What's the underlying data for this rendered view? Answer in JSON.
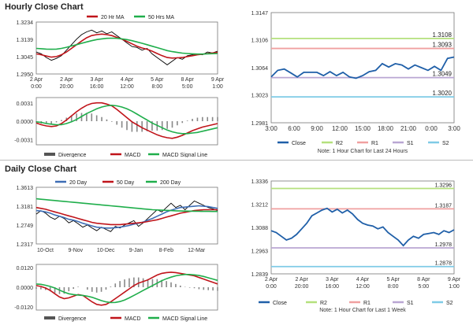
{
  "sections": {
    "hourly_title": "Hourly Close Chart",
    "daily_title": "Daily Close Chart"
  },
  "colors": {
    "close": "#000000",
    "ma_red": "#c0141a",
    "ma_green": "#1fae4b",
    "ma_blue": "#3d6db5",
    "macd_bars": "#888888",
    "r2": "#b4e07d",
    "r1": "#f0a0a0",
    "s1": "#b9a6d3",
    "s2": "#7fcbe6",
    "close_right": "#1f5fa8",
    "grid": "#cccccc"
  },
  "chart_data": [
    {
      "id": "hourly_price",
      "type": "line",
      "legend": [
        "20 Hr MA",
        "50 Hrs MA"
      ],
      "x_tick_labels": [
        [
          "2 Apr",
          "0:00"
        ],
        [
          "2 Apr",
          "20:00"
        ],
        [
          "3 Apr",
          "16:00"
        ],
        [
          "4 Apr",
          "12:00"
        ],
        [
          "5 Apr",
          "8:00"
        ],
        [
          "8 Apr",
          "5:00"
        ],
        [
          "9 Apr",
          "1:00"
        ]
      ],
      "y_ticks": [
        1.295,
        1.3045,
        1.3139,
        1.3234
      ],
      "y_tick_labels": [
        "1.2950",
        "1.3045",
        "1.3139",
        "1.3234"
      ],
      "ylim": [
        1.295,
        1.3234
      ],
      "series": [
        {
          "values": [
            1.307,
            1.306,
            1.304,
            1.3025,
            1.3035,
            1.305,
            1.308,
            1.311,
            1.314,
            1.3165,
            1.318,
            1.319,
            1.3175,
            1.3185,
            1.317,
            1.318,
            1.316,
            1.314,
            1.312,
            1.31,
            1.3095,
            1.308,
            1.309,
            1.306,
            1.304,
            1.302,
            1.3,
            1.302,
            1.304,
            1.303,
            1.305,
            1.3055,
            1.306,
            1.3055,
            1.307,
            1.3065,
            1.3075
          ]
        },
        {
          "name": "20 Hr MA",
          "values": [
            1.306,
            1.3055,
            1.3048,
            1.3042,
            1.3045,
            1.3055,
            1.307,
            1.309,
            1.311,
            1.313,
            1.3148,
            1.316,
            1.3165,
            1.3168,
            1.3165,
            1.316,
            1.315,
            1.314,
            1.3128,
            1.3115,
            1.3102,
            1.3092,
            1.3085,
            1.3075,
            1.3062,
            1.305,
            1.304,
            1.3037,
            1.3038,
            1.304,
            1.3045,
            1.305,
            1.3055,
            1.3058,
            1.3062,
            1.3065,
            1.3068
          ]
        },
        {
          "name": "50 Hrs MA",
          "values": [
            1.309,
            1.3088,
            1.3086,
            1.3085,
            1.3086,
            1.309,
            1.3096,
            1.3103,
            1.311,
            1.3118,
            1.3125,
            1.3132,
            1.3138,
            1.3142,
            1.3145,
            1.3146,
            1.3145,
            1.3142,
            1.3138,
            1.3132,
            1.3125,
            1.3118,
            1.311,
            1.3102,
            1.3094,
            1.3086,
            1.3078,
            1.3072,
            1.3068,
            1.3064,
            1.3062,
            1.306,
            1.3059,
            1.3059,
            1.306,
            1.3061,
            1.3062
          ]
        }
      ]
    },
    {
      "id": "hourly_macd",
      "type": "line",
      "legend": [
        "Divergence",
        "MACD",
        "MACD Signal Line"
      ],
      "y_ticks": [
        -0.0031,
        0.0,
        0.0031
      ],
      "y_tick_labels": [
        "-0.0031",
        "0.0000",
        "0.0031"
      ],
      "ylim": [
        -0.004,
        0.004
      ],
      "series": [
        {
          "name": "MACD",
          "values": [
            -0.0003,
            -0.0006,
            -0.0008,
            -0.0009,
            -0.0008,
            -0.0004,
            0.0002,
            0.0009,
            0.0016,
            0.0022,
            0.0027,
            0.003,
            0.0031,
            0.0031,
            0.0029,
            0.0026,
            0.002,
            0.0013,
            0.0006,
            -0.0001,
            -0.0006,
            -0.0011,
            -0.0015,
            -0.0019,
            -0.0023,
            -0.0026,
            -0.0028,
            -0.0029,
            -0.0027,
            -0.0024,
            -0.002,
            -0.0016,
            -0.0013,
            -0.001,
            -0.0008,
            -0.0006,
            -0.0004
          ]
        },
        {
          "name": "MACD Signal Line",
          "values": [
            -0.0001,
            -0.0002,
            -0.0004,
            -0.0005,
            -0.0006,
            -0.0006,
            -0.0004,
            -0.0001,
            0.0003,
            0.0008,
            0.0013,
            0.0017,
            0.0021,
            0.0024,
            0.0026,
            0.0027,
            0.0026,
            0.0024,
            0.0021,
            0.0017,
            0.0012,
            0.0007,
            0.0002,
            -0.0003,
            -0.0007,
            -0.0011,
            -0.0015,
            -0.0018,
            -0.002,
            -0.0021,
            -0.0021,
            -0.002,
            -0.0019,
            -0.0017,
            -0.0015,
            -0.0013,
            -0.0011
          ]
        }
      ]
    },
    {
      "id": "hourly_pivot",
      "type": "line",
      "legend": [
        "Close",
        "R2",
        "R1",
        "S1",
        "S2"
      ],
      "note": "Note: 1 Hour Chart for Last 24 Hours",
      "x_tick_labels": [
        "3:00",
        "6:00",
        "9:00",
        "12:00",
        "15:00",
        "18:00",
        "21:00",
        "0:00",
        "3:00"
      ],
      "y_ticks": [
        1.2981,
        1.3023,
        1.3064,
        1.3106,
        1.3147
      ],
      "y_tick_labels": [
        "1.2981",
        "1.3023",
        "1.3064",
        "1.3106",
        "1.3147"
      ],
      "ylim": [
        1.2981,
        1.3147
      ],
      "levels": [
        {
          "name": "R2",
          "value": 1.3108,
          "label": "1.3108"
        },
        {
          "name": "R1",
          "value": 1.3093,
          "label": "1.3093"
        },
        {
          "name": "S1",
          "value": 1.3049,
          "label": "1.3049"
        },
        {
          "name": "S2",
          "value": 1.302,
          "label": "1.3020"
        }
      ],
      "series": [
        {
          "name": "Close",
          "values": [
            1.305,
            1.306,
            1.3062,
            1.3056,
            1.305,
            1.3057,
            1.3057,
            1.3057,
            1.3052,
            1.3058,
            1.3052,
            1.3057,
            1.305,
            1.3048,
            1.3052,
            1.3058,
            1.306,
            1.307,
            1.3065,
            1.307,
            1.3068,
            1.3062,
            1.3068,
            1.3064,
            1.306,
            1.3066,
            1.306,
            1.3078,
            1.308
          ]
        }
      ]
    },
    {
      "id": "daily_price",
      "type": "line",
      "legend": [
        "20 Day",
        "50 Day",
        "200 Day"
      ],
      "x_tick_labels": [
        "10-Oct",
        "9-Nov",
        "10-Dec",
        "9-Jan",
        "8-Feb",
        "12-Mar"
      ],
      "y_ticks": [
        1.2317,
        1.2749,
        1.3181,
        1.3613
      ],
      "y_tick_labels": [
        "1.2317",
        "1.2749",
        "1.3181",
        "1.3613"
      ],
      "ylim": [
        1.2317,
        1.3613
      ],
      "series": [
        {
          "values": [
            1.3,
            1.308,
            1.302,
            1.293,
            1.288,
            1.295,
            1.29,
            1.28,
            1.285,
            1.278,
            1.27,
            1.275,
            1.268,
            1.262,
            1.27,
            1.265,
            1.26,
            1.272,
            1.268,
            1.275,
            1.28,
            1.285,
            1.272,
            1.28,
            1.29,
            1.3,
            1.31,
            1.305,
            1.315,
            1.325,
            1.315,
            1.32,
            1.31,
            1.32,
            1.33,
            1.325,
            1.32,
            1.315,
            1.312,
            1.308
          ]
        },
        {
          "name": "20 Day",
          "values": [
            1.308,
            1.307,
            1.305,
            1.302,
            1.298,
            1.295,
            1.292,
            1.288,
            1.286,
            1.283,
            1.279,
            1.276,
            1.273,
            1.27,
            1.269,
            1.268,
            1.268,
            1.269,
            1.27,
            1.272,
            1.274,
            1.277,
            1.279,
            1.282,
            1.286,
            1.29,
            1.295,
            1.3,
            1.305,
            1.309,
            1.312,
            1.315,
            1.316,
            1.317,
            1.318,
            1.319,
            1.318,
            1.317,
            1.315,
            1.313
          ]
        },
        {
          "name": "50 Day",
          "values": [
            1.315,
            1.313,
            1.311,
            1.308,
            1.305,
            1.302,
            1.299,
            1.296,
            1.293,
            1.29,
            1.287,
            1.284,
            1.281,
            1.279,
            1.278,
            1.277,
            1.276,
            1.276,
            1.276,
            1.277,
            1.278,
            1.279,
            1.28,
            1.281,
            1.283,
            1.285,
            1.287,
            1.29,
            1.293,
            1.296,
            1.299,
            1.302,
            1.304,
            1.306,
            1.308,
            1.309,
            1.31,
            1.31,
            1.31,
            1.31
          ]
        },
        {
          "name": "200 Day",
          "values": [
            1.335,
            1.334,
            1.333,
            1.332,
            1.331,
            1.33,
            1.329,
            1.328,
            1.327,
            1.326,
            1.325,
            1.324,
            1.323,
            1.322,
            1.321,
            1.32,
            1.319,
            1.318,
            1.317,
            1.316,
            1.315,
            1.314,
            1.313,
            1.312,
            1.311,
            1.31,
            1.3095,
            1.309,
            1.3085,
            1.308,
            1.3075,
            1.3072,
            1.307,
            1.3068,
            1.3066,
            1.3064,
            1.3063,
            1.3062,
            1.3061,
            1.306
          ]
        }
      ]
    },
    {
      "id": "daily_macd",
      "type": "line",
      "legend": [
        "Divergence",
        "MACD",
        "MACD Signal Line"
      ],
      "y_ticks": [
        -0.012,
        0.0,
        0.012
      ],
      "y_tick_labels": [
        "-0.0120",
        "0.0000",
        "0.0120"
      ],
      "ylim": [
        -0.014,
        0.014
      ],
      "series": [
        {
          "name": "MACD",
          "values": [
            0.001,
            0.0005,
            -0.0005,
            -0.002,
            -0.004,
            -0.006,
            -0.007,
            -0.0065,
            -0.0055,
            -0.0045,
            -0.005,
            -0.007,
            -0.009,
            -0.0105,
            -0.011,
            -0.0105,
            -0.009,
            -0.007,
            -0.005,
            -0.003,
            -0.001,
            0.001,
            0.0025,
            0.0035,
            0.0045,
            0.006,
            0.0075,
            0.0085,
            0.009,
            0.0092,
            0.009,
            0.0085,
            0.008,
            0.0075,
            0.007,
            0.006,
            0.005,
            0.004,
            0.003,
            0.002
          ]
        },
        {
          "name": "MACD Signal Line",
          "values": [
            0.002,
            0.0018,
            0.0012,
            0.0005,
            -0.0005,
            -0.0018,
            -0.003,
            -0.004,
            -0.0045,
            -0.0048,
            -0.005,
            -0.0055,
            -0.0062,
            -0.0072,
            -0.0082,
            -0.009,
            -0.0094,
            -0.0093,
            -0.0088,
            -0.0078,
            -0.0065,
            -0.005,
            -0.0035,
            -0.002,
            -0.0005,
            0.001,
            0.0025,
            0.004,
            0.0052,
            0.0062,
            0.007,
            0.0075,
            0.0078,
            0.0078,
            0.0076,
            0.0072,
            0.0066,
            0.0058,
            0.005,
            0.0042
          ]
        }
      ]
    },
    {
      "id": "daily_pivot",
      "type": "line",
      "legend": [
        "Close",
        "R2",
        "R1",
        "S1",
        "S2"
      ],
      "note": "Note: 1 Hour Chart for Last 1 Week",
      "x_tick_labels": [
        [
          "2 Apr",
          "0:00"
        ],
        [
          "2 Apr",
          "20:00"
        ],
        [
          "3 Apr",
          "16:00"
        ],
        [
          "4 Apr",
          "12:00"
        ],
        [
          "5 Apr",
          "8:00"
        ],
        [
          "8 Apr",
          "5:00"
        ],
        [
          "9 Apr",
          "1:00"
        ]
      ],
      "y_ticks": [
        1.2839,
        1.2963,
        1.3088,
        1.3212,
        1.3336
      ],
      "y_tick_labels": [
        "1.2839",
        "1.2963",
        "1.3088",
        "1.3212",
        "1.3336"
      ],
      "ylim": [
        1.2839,
        1.3336
      ],
      "levels": [
        {
          "name": "R2",
          "value": 1.3296,
          "label": "1.3296"
        },
        {
          "name": "R1",
          "value": 1.3187,
          "label": "1.3187"
        },
        {
          "name": "S1",
          "value": 1.2978,
          "label": "1.2978"
        },
        {
          "name": "S2",
          "value": 1.2878,
          "label": "1.2878"
        }
      ],
      "series": [
        {
          "name": "Close",
          "values": [
            1.307,
            1.306,
            1.304,
            1.302,
            1.303,
            1.305,
            1.308,
            1.311,
            1.315,
            1.3165,
            1.318,
            1.319,
            1.317,
            1.3185,
            1.3165,
            1.318,
            1.316,
            1.313,
            1.311,
            1.31,
            1.3095,
            1.308,
            1.309,
            1.306,
            1.304,
            1.302,
            1.299,
            1.302,
            1.304,
            1.303,
            1.305,
            1.3055,
            1.306,
            1.305,
            1.307,
            1.306,
            1.3075
          ]
        }
      ]
    }
  ]
}
